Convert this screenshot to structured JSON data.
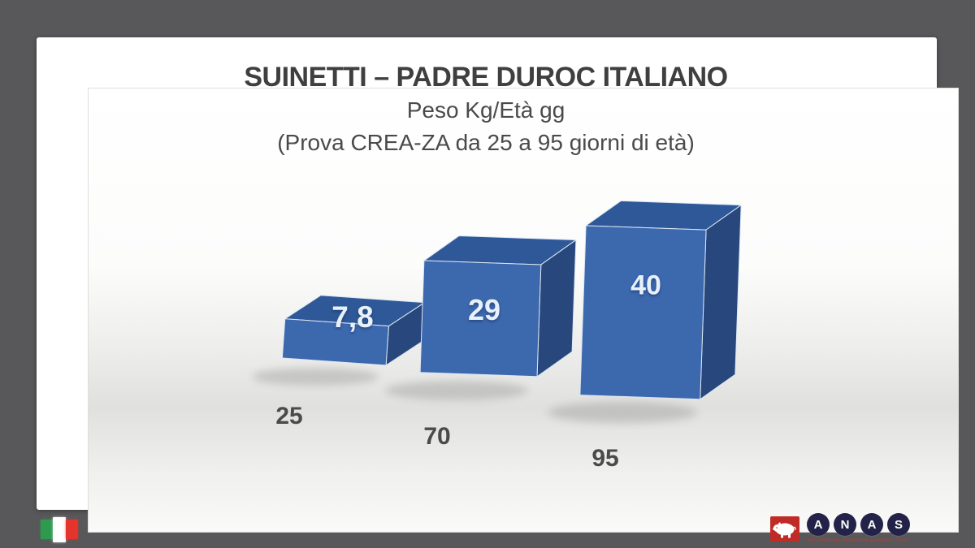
{
  "slide": {
    "title": "SUINETTI – PADRE DUROC ITALIANO",
    "subtitle": "Peso Kg/Età gg",
    "note": "(Prova CREA-ZA da 25 a 95 giorni di età)"
  },
  "chart_data": {
    "type": "bar",
    "style": "3d-oblique-bars",
    "title": "SUINETTI – PADRE DUROC ITALIANO",
    "subtitle": "Peso Kg/Età gg",
    "annotation": "(Prova CREA-ZA da 25 a 95 giorni di età)",
    "categories": [
      "25",
      "70",
      "95"
    ],
    "values": [
      7.8,
      29,
      40
    ],
    "value_labels": [
      "7,8",
      "29",
      "40"
    ],
    "grid": false,
    "legend": false,
    "axes_shown": false,
    "bar_color": "#3c68ae"
  },
  "footer": {
    "flag_icon": "italian-flag",
    "anas": {
      "letters": [
        "A",
        "N",
        "A",
        "S"
      ],
      "tagline": "associazione nazionale allevatori suini"
    }
  },
  "colors": {
    "background": "#58585a",
    "card": "#ffffff",
    "bar_front": "#3c68ae",
    "bar_front_light": "#4571b7",
    "bar_top": "#2e5897",
    "bar_top_light": "#3a68ad",
    "bar_side": "#27477d",
    "bar_edge": "#dce7f4",
    "value_label": "#e8f1fb",
    "title_text": "#3f3f3f",
    "tick_text": "#4b4b4b",
    "shadow": "#9e9e9c",
    "flag_green": "#2e9a4e",
    "flag_red": "#e5342c",
    "anas_circle": "#232349",
    "anas_red": "#bf2b26"
  }
}
